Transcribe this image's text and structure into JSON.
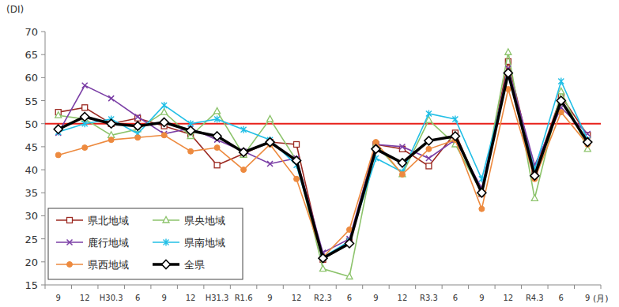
{
  "chart_data": {
    "type": "line",
    "y_label": "(DI)",
    "x_label": "(月)",
    "categories": [
      "9",
      "12",
      "H30.3",
      "6",
      "9",
      "12",
      "H31.3",
      "R1.6",
      "9",
      "12",
      "R2.3",
      "6",
      "9",
      "12",
      "R3.3",
      "6",
      "9",
      "12",
      "R4.3",
      "6",
      "9"
    ],
    "ylim": [
      15,
      70
    ],
    "yticks": [
      15,
      20,
      25,
      30,
      35,
      40,
      45,
      50,
      55,
      60,
      65,
      70
    ],
    "grid": false,
    "legend": "lower left",
    "threshold": 50,
    "series": [
      {
        "name": "県北地域",
        "color": "#9c2a22",
        "marker": "square",
        "line_style": "solid",
        "values": [
          52.5,
          53.5,
          50.0,
          51.2,
          49.5,
          47.7,
          41.0,
          43.5,
          46.0,
          45.5,
          20.5,
          24.5,
          45.5,
          44.5,
          40.8,
          48.0,
          34.8,
          63.5,
          39.5,
          56.0,
          47.5
        ]
      },
      {
        "name": "県央地域",
        "color": "#8cc36b",
        "marker": "triangle",
        "line_style": "solid",
        "values": [
          51.8,
          51.0,
          47.5,
          48.8,
          52.5,
          47.3,
          52.7,
          43.2,
          51.0,
          42.0,
          18.5,
          16.8,
          45.5,
          39.0,
          50.8,
          45.5,
          35.0,
          65.5,
          33.8,
          57.0,
          44.5
        ]
      },
      {
        "name": "鹿行地域",
        "color": "#7b3fa6",
        "marker": "x",
        "line_style": "solid",
        "values": [
          48.0,
          58.3,
          55.5,
          51.5,
          47.8,
          49.0,
          46.5,
          44.0,
          41.3,
          42.5,
          22.0,
          25.0,
          45.5,
          45.0,
          42.5,
          46.5,
          36.0,
          62.0,
          41.0,
          53.5,
          47.8
        ]
      },
      {
        "name": "県南地域",
        "color": "#22bfe6",
        "marker": "star",
        "line_style": "solid",
        "values": [
          48.2,
          50.0,
          51.0,
          47.8,
          54.0,
          50.0,
          51.0,
          48.7,
          46.5,
          41.0,
          21.0,
          24.5,
          42.5,
          39.5,
          52.2,
          51.0,
          38.0,
          60.5,
          40.0,
          59.2,
          46.5
        ]
      },
      {
        "name": "県西地域",
        "color": "#ed8a3f",
        "marker": "circle",
        "line_style": "solid",
        "values": [
          43.2,
          44.8,
          46.5,
          47.0,
          47.5,
          44.0,
          44.8,
          40.0,
          45.5,
          38.0,
          21.0,
          27.0,
          46.0,
          39.0,
          44.5,
          46.5,
          31.5,
          57.5,
          38.0,
          52.5,
          45.5
        ]
      },
      {
        "name": "全県",
        "color": "#000000",
        "marker": "diamond",
        "line_style": "solid",
        "values": [
          48.8,
          51.5,
          50.0,
          49.5,
          50.3,
          48.5,
          47.3,
          43.8,
          46.0,
          42.0,
          20.8,
          24.0,
          44.5,
          41.5,
          46.3,
          47.3,
          35.0,
          61.0,
          38.7,
          55.0,
          46.0
        ]
      }
    ]
  }
}
